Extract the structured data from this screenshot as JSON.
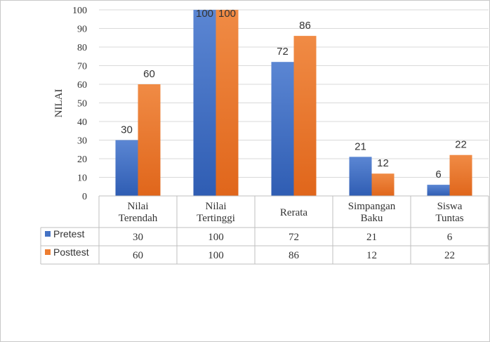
{
  "chart_data": {
    "type": "bar",
    "ylabel": "NILAI",
    "ylim": [
      0,
      100
    ],
    "yticks": [
      0,
      10,
      20,
      30,
      40,
      50,
      60,
      70,
      80,
      90,
      100
    ],
    "grid": true,
    "legend": "table",
    "categories": [
      [
        "Nilai",
        "Terendah"
      ],
      [
        "Nilai",
        "Tertinggi"
      ],
      [
        "Rerata"
      ],
      [
        "Simpangan",
        "Baku"
      ],
      [
        "Siswa",
        "Tuntas"
      ]
    ],
    "series": [
      {
        "name": "Pretest",
        "color": "#4472C4",
        "values": [
          30,
          100,
          72,
          21,
          6
        ]
      },
      {
        "name": "Posttest",
        "color": "#ED7D31",
        "values": [
          60,
          100,
          86,
          12,
          22
        ]
      }
    ]
  }
}
